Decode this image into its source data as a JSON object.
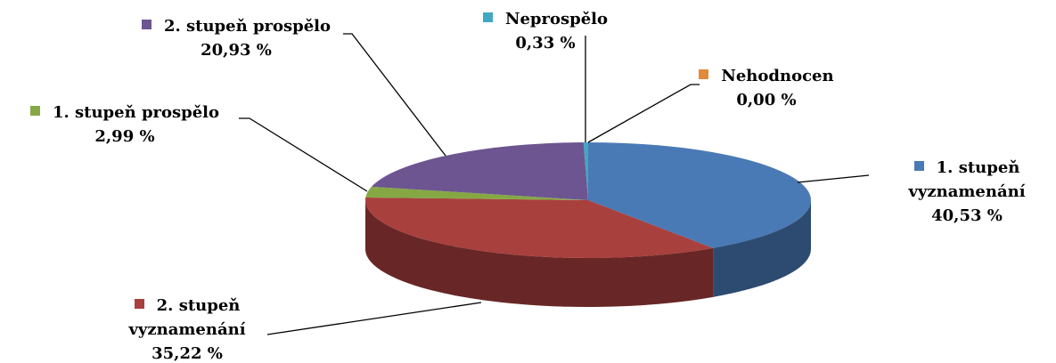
{
  "chart_data": {
    "type": "pie",
    "categories": [
      "1. stupeň vyznamenání",
      "2. stupeň vyznamenání",
      "1. stupeň prospělo",
      "2. stupeň prospělo",
      "Neprospělo",
      "Nehodnocen"
    ],
    "values": [
      40.53,
      35.22,
      2.99,
      20.93,
      0.33,
      0.0
    ],
    "value_labels": [
      "40,53 %",
      "35,22 %",
      "2,99 %",
      "20,93 %",
      "0,33 %",
      "0,00 %"
    ],
    "colors": [
      "#4a7ab5",
      "#a8403e",
      "#85a844",
      "#6c5590",
      "#3fa8c2",
      "#e08a3a"
    ]
  }
}
